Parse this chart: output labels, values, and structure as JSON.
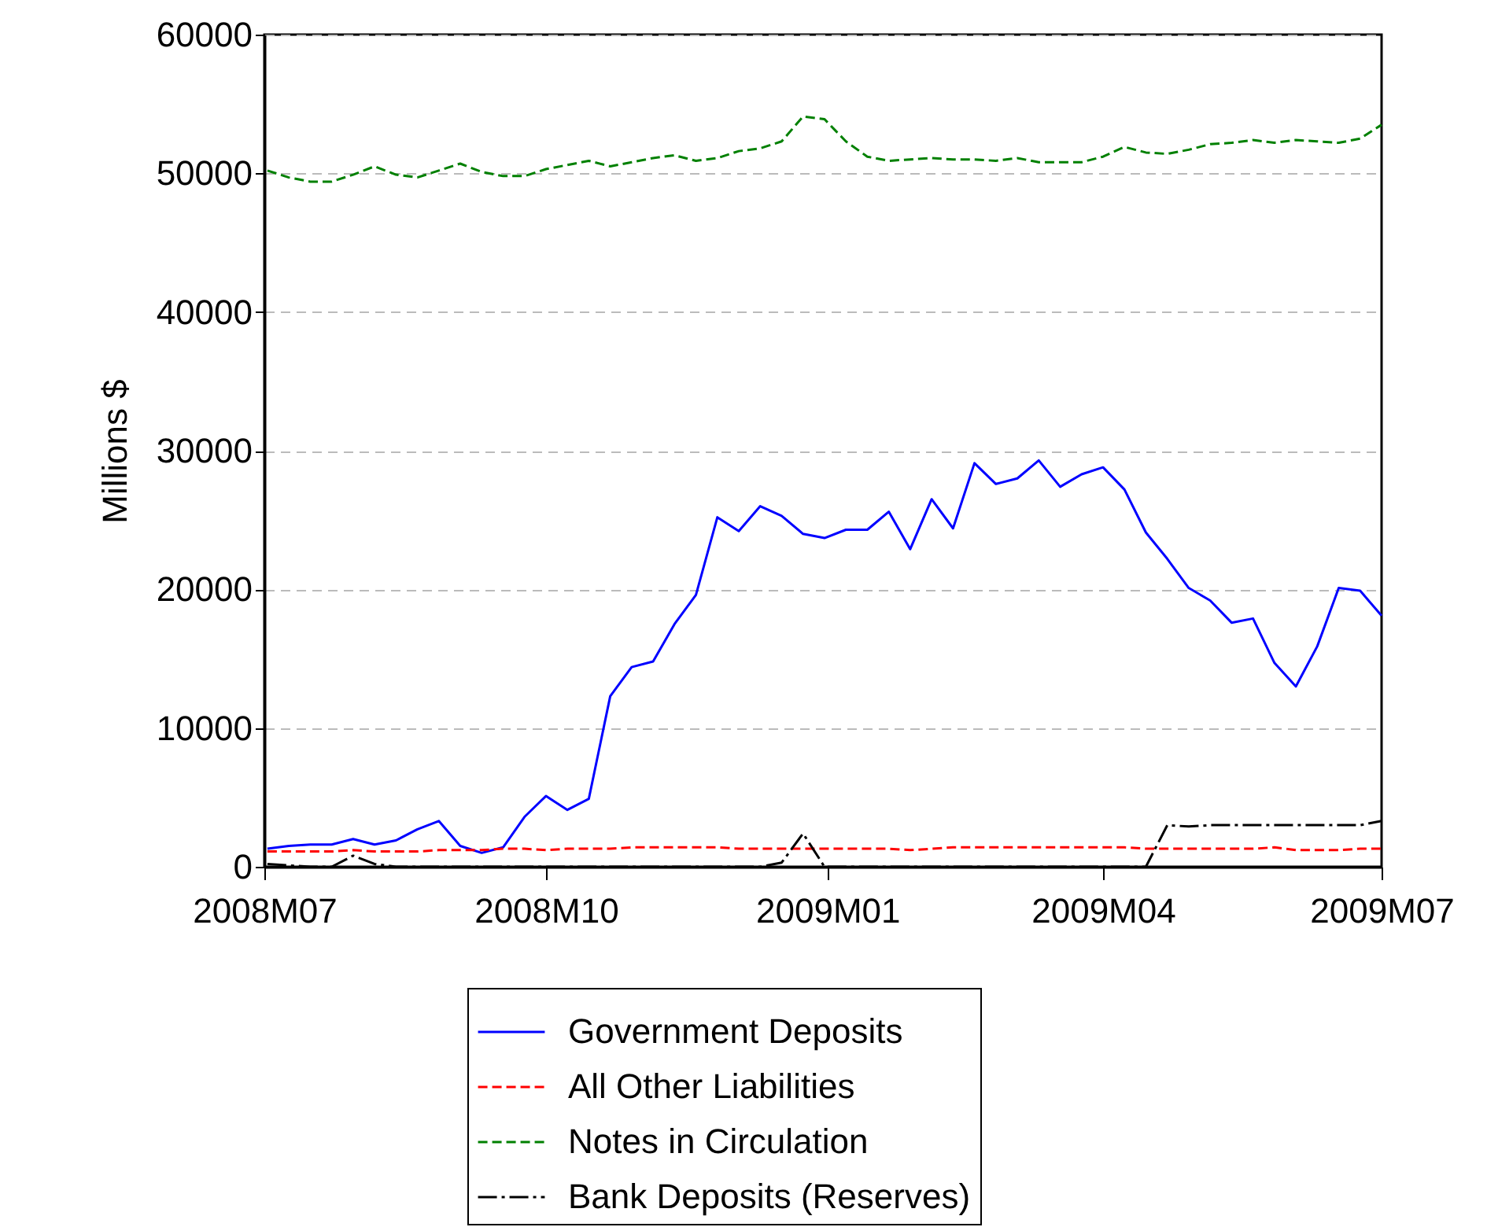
{
  "chart_data": {
    "type": "line",
    "ylabel": "Millions $",
    "x": [
      "2008-07-02",
      "2008-07-09",
      "2008-07-16",
      "2008-07-23",
      "2008-07-30",
      "2008-08-06",
      "2008-08-13",
      "2008-08-20",
      "2008-08-27",
      "2008-09-03",
      "2008-09-10",
      "2008-09-17",
      "2008-09-24",
      "2008-10-01",
      "2008-10-08",
      "2008-10-15",
      "2008-10-22",
      "2008-10-29",
      "2008-11-05",
      "2008-11-12",
      "2008-11-19",
      "2008-11-26",
      "2008-12-03",
      "2008-12-10",
      "2008-12-17",
      "2008-12-24",
      "2008-12-31",
      "2009-01-07",
      "2009-01-14",
      "2009-01-21",
      "2009-01-28",
      "2009-02-04",
      "2009-02-11",
      "2009-02-18",
      "2009-02-25",
      "2009-03-04",
      "2009-03-11",
      "2009-03-18",
      "2009-03-25",
      "2009-04-01",
      "2009-04-08",
      "2009-04-15",
      "2009-04-22",
      "2009-04-29",
      "2009-05-06",
      "2009-05-13",
      "2009-05-20",
      "2009-05-27",
      "2009-06-03",
      "2009-06-10",
      "2009-06-17",
      "2009-06-24",
      "2009-07-01"
    ],
    "series": [
      {
        "name": "Government Deposits",
        "color": "#0000ff",
        "line_style": "solid",
        "values": [
          1300,
          1500,
          1600,
          1600,
          2000,
          1600,
          1900,
          2700,
          3300,
          1500,
          1000,
          1400,
          3600,
          5100,
          4100,
          4900,
          12300,
          14400,
          14800,
          17500,
          19600,
          25200,
          24200,
          26000,
          25300,
          24000,
          23700,
          24300,
          24300,
          25600,
          22900,
          26500,
          24400,
          29100,
          27600,
          28000,
          29300,
          27400,
          28300,
          28800,
          27200,
          24100,
          22200,
          20100,
          19200,
          17600,
          17900,
          14700,
          13000,
          15900,
          20100,
          19900,
          18100
        ]
      },
      {
        "name": "All Other Liabilities",
        "color": "#ff0000",
        "line_style": "dashed",
        "values": [
          1100,
          1100,
          1100,
          1100,
          1200,
          1100,
          1100,
          1100,
          1200,
          1200,
          1200,
          1300,
          1300,
          1200,
          1300,
          1300,
          1300,
          1400,
          1400,
          1400,
          1400,
          1400,
          1300,
          1300,
          1300,
          1300,
          1300,
          1300,
          1300,
          1300,
          1200,
          1300,
          1400,
          1400,
          1400,
          1400,
          1400,
          1400,
          1400,
          1400,
          1400,
          1300,
          1300,
          1300,
          1300,
          1300,
          1300,
          1400,
          1200,
          1200,
          1200,
          1300,
          1300
        ]
      },
      {
        "name": "Notes in Circulation",
        "color": "#008000",
        "line_style": "dashed",
        "values": [
          50200,
          49700,
          49400,
          49400,
          49900,
          50500,
          49900,
          49700,
          50200,
          50700,
          50100,
          49800,
          49800,
          50300,
          50600,
          50900,
          50500,
          50800,
          51100,
          51300,
          50900,
          51100,
          51600,
          51800,
          52300,
          54100,
          53900,
          52300,
          51200,
          50900,
          51000,
          51100,
          51000,
          51000,
          50900,
          51100,
          50800,
          50800,
          50800,
          51200,
          51900,
          51500,
          51400,
          51700,
          52100,
          52200,
          52400,
          52200,
          52400,
          52300,
          52200,
          52500,
          53500
        ]
      },
      {
        "name": "Bank Deposits (Reserves)",
        "color": "#000000",
        "line_style": "dashdot",
        "values": [
          200,
          100,
          0,
          0,
          800,
          200,
          0,
          0,
          0,
          0,
          0,
          0,
          0,
          0,
          0,
          0,
          0,
          0,
          0,
          0,
          0,
          0,
          0,
          0,
          300,
          2400,
          0,
          0,
          0,
          0,
          0,
          0,
          0,
          0,
          0,
          0,
          0,
          0,
          0,
          0,
          0,
          0,
          3000,
          2900,
          3000,
          3000,
          3000,
          3000,
          3000,
          3000,
          3000,
          3000,
          3300
        ]
      }
    ],
    "xlim": [
      "2008-07-01",
      "2009-07-01"
    ],
    "xticks": [
      {
        "value": "2008-07-01",
        "label": "2008M07"
      },
      {
        "value": "2008-10-01",
        "label": "2008M10"
      },
      {
        "value": "2009-01-01",
        "label": "2009M01"
      },
      {
        "value": "2009-04-01",
        "label": "2009M04"
      },
      {
        "value": "2009-07-01",
        "label": "2009M07"
      }
    ],
    "ylim": [
      0,
      60000
    ],
    "yticks": [
      0,
      10000,
      20000,
      30000,
      40000,
      50000,
      60000
    ],
    "grid": "y",
    "legend": "bottom"
  }
}
